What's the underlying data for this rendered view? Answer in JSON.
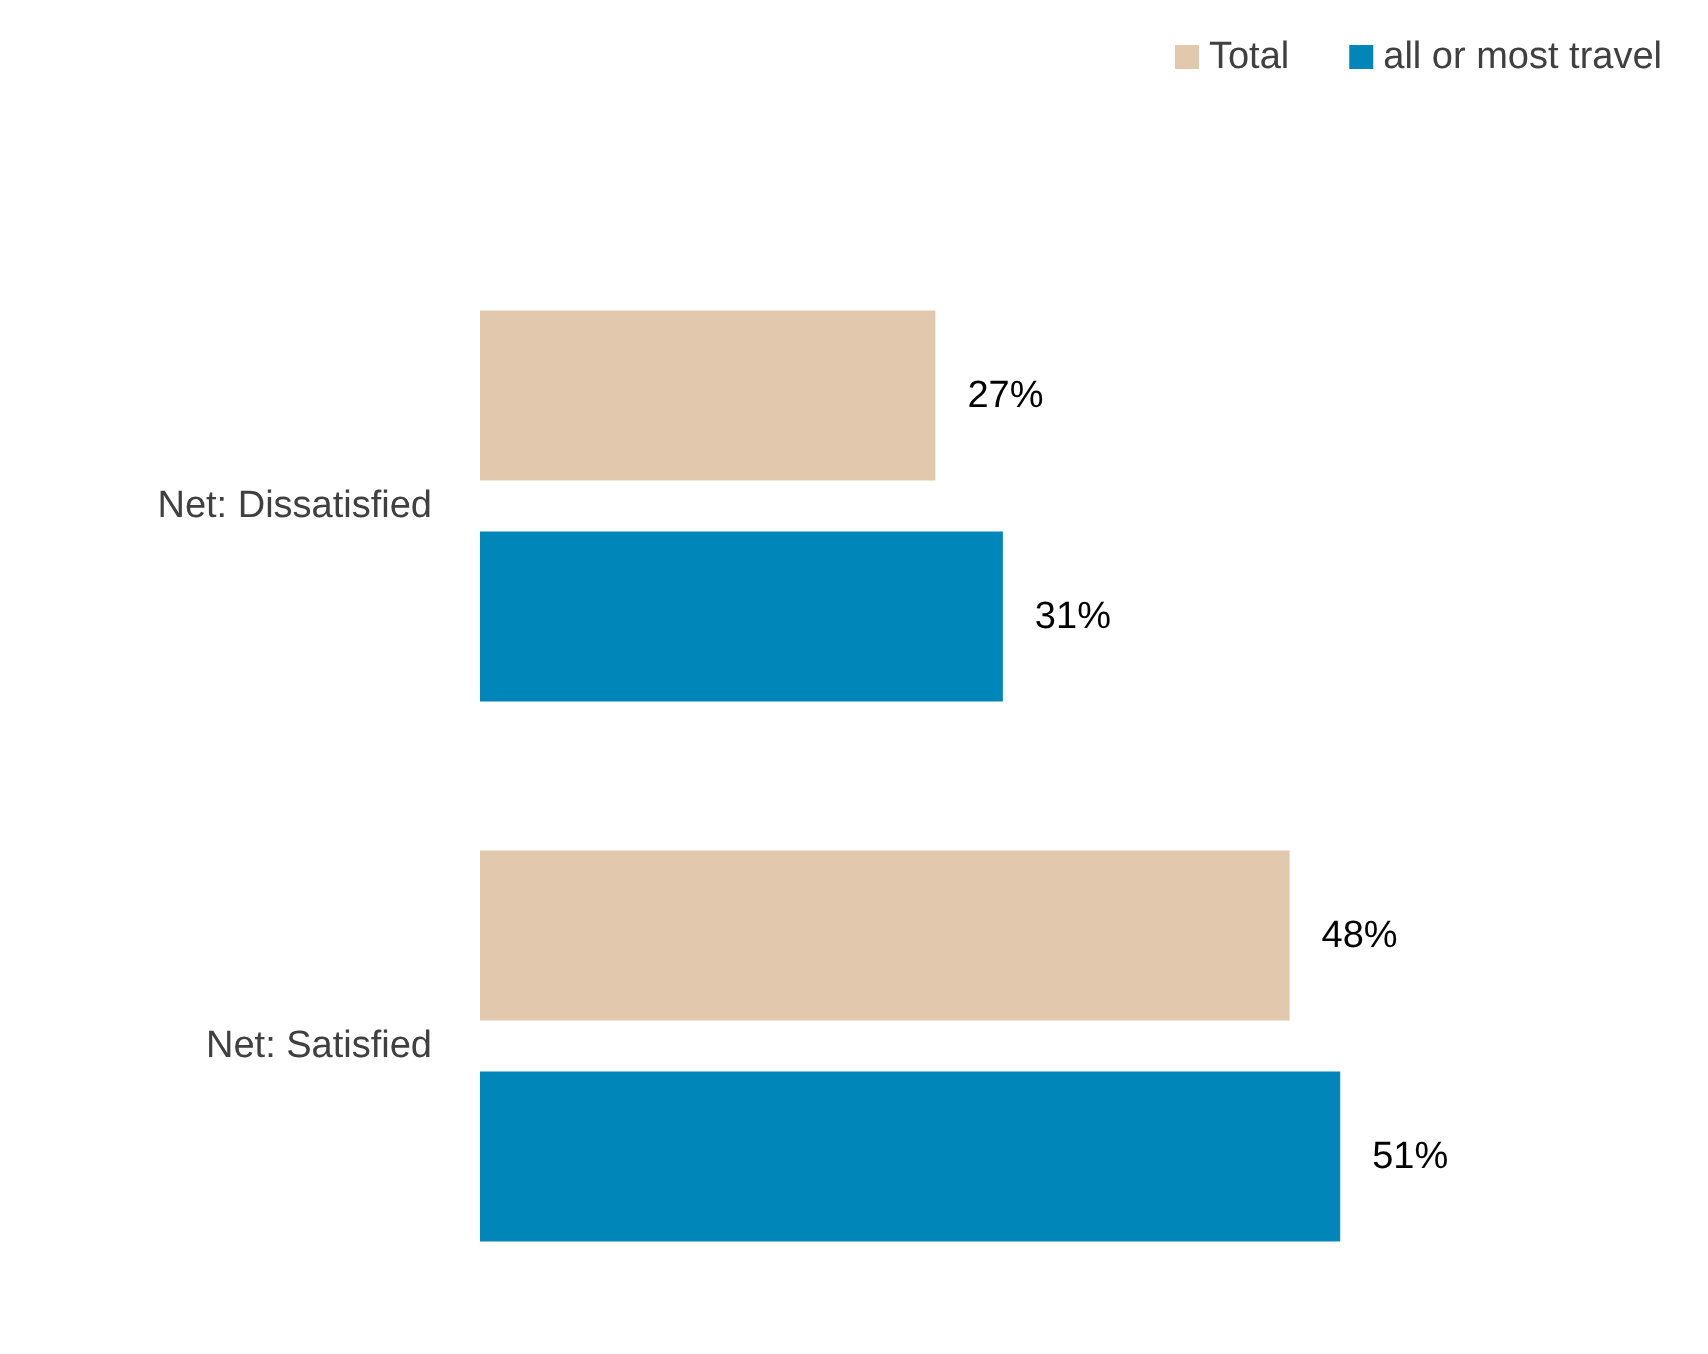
{
  "chart_data": {
    "type": "bar",
    "orientation": "horizontal",
    "categories": [
      "Net: Dissatisfied",
      "Net: Satisfied"
    ],
    "series": [
      {
        "name": "Total",
        "color": "#e2c9ae",
        "values": [
          27,
          48
        ],
        "value_labels": [
          "27%",
          "48%"
        ]
      },
      {
        "name": "all or most travel",
        "color": "#0086b8",
        "values": [
          31,
          51
        ],
        "value_labels": [
          "31%",
          "51%"
        ]
      }
    ],
    "legend": "top right",
    "grid": false
  }
}
